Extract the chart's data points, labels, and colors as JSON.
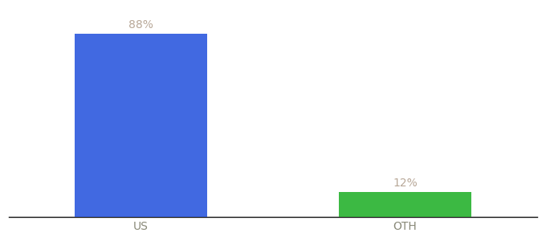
{
  "categories": [
    "US",
    "OTH"
  ],
  "values": [
    88,
    12
  ],
  "bar_colors": [
    "#4169E1",
    "#3CB943"
  ],
  "label_color": "#b8a898",
  "value_labels": [
    "88%",
    "12%"
  ],
  "background_color": "#ffffff",
  "bar_width": 0.5,
  "ylim": [
    0,
    100
  ],
  "tick_fontsize": 10,
  "label_fontsize": 10
}
